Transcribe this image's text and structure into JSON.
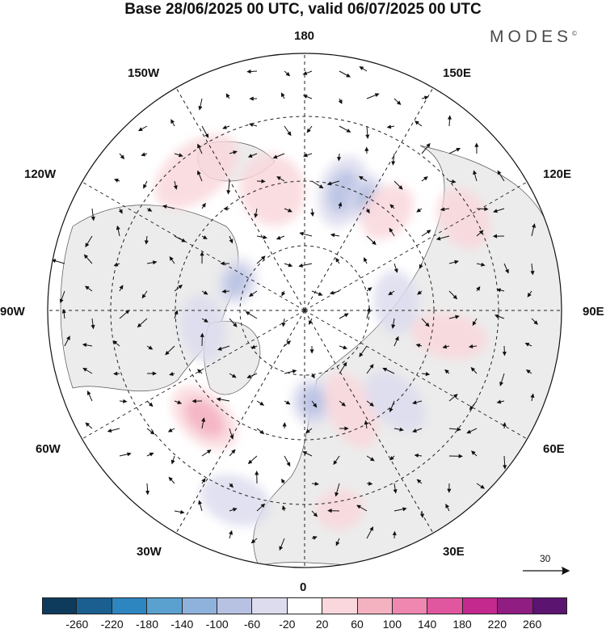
{
  "title": "Base 28/06/2025 00 UTC, valid 06/07/2025 00 UTC",
  "brand": {
    "name": "MODES",
    "mark": "©"
  },
  "longitude_labels": {
    "n": "180",
    "s": "0",
    "e": "90E",
    "w": "90W",
    "nw1": "150W",
    "ne1": "150E",
    "nw2": "120W",
    "ne2": "120E",
    "sw1": "60W",
    "se1": "60E",
    "sw2": "30W",
    "se2": "30E"
  },
  "reference_vector": {
    "label": "30"
  },
  "colorbar": {
    "ticks": [
      "-260",
      "-220",
      "-180",
      "-140",
      "-100",
      "-60",
      "-20",
      "20",
      "60",
      "100",
      "140",
      "180",
      "220",
      "260"
    ],
    "colors": [
      "#0e3b5c",
      "#1a5f8f",
      "#2e86c1",
      "#5aa1d0",
      "#8fb2dc",
      "#b7c2e3",
      "#dcdcee",
      "#ffffff",
      "#f9d7dc",
      "#f4b2c1",
      "#ef87b0",
      "#e0579f",
      "#c42a8d",
      "#8f1d82",
      "#5b1470"
    ]
  },
  "anomalies": [
    {
      "lon": 162,
      "lat": 56,
      "level": 2,
      "sign": -1,
      "rx": 30,
      "ry": 45
    },
    {
      "lon": 152,
      "lat": 55,
      "level": 3,
      "sign": -1,
      "rx": 18,
      "ry": 30
    },
    {
      "lon": 140,
      "lat": 55,
      "level": 1,
      "sign": 1,
      "rx": 28,
      "ry": 38
    },
    {
      "lon": 195,
      "lat": 56,
      "level": 1,
      "sign": 1,
      "rx": 40,
      "ry": 45
    },
    {
      "lon": 218,
      "lat": 42,
      "level": 1,
      "sign": 1,
      "rx": 60,
      "ry": 35
    },
    {
      "lon": 247,
      "lat": 70,
      "level": 2,
      "sign": -1,
      "rx": 30,
      "ry": 24
    },
    {
      "lon": 280,
      "lat": 62,
      "level": 1,
      "sign": -1,
      "rx": 42,
      "ry": 28
    },
    {
      "lon": 317,
      "lat": 50,
      "level": 2,
      "sign": 1,
      "rx": 48,
      "ry": 30
    },
    {
      "lon": 5,
      "lat": 65,
      "level": 2,
      "sign": -1,
      "rx": 26,
      "ry": 30
    },
    {
      "lon": 25,
      "lat": 60,
      "level": 1,
      "sign": 1,
      "rx": 28,
      "ry": 50
    },
    {
      "lon": 45,
      "lat": 55,
      "level": 1,
      "sign": -1,
      "rx": 28,
      "ry": 45
    },
    {
      "lon": 80,
      "lat": 50,
      "level": 1,
      "sign": 1,
      "rx": 28,
      "ry": 48
    },
    {
      "lon": 120,
      "lat": 40,
      "level": 1,
      "sign": 1,
      "rx": 40,
      "ry": 30
    },
    {
      "lon": 95,
      "lat": 65,
      "level": 1,
      "sign": -1,
      "rx": 40,
      "ry": 28
    },
    {
      "lon": 340,
      "lat": 35,
      "level": 1,
      "sign": -1,
      "rx": 45,
      "ry": 30
    },
    {
      "lon": 10,
      "lat": 35,
      "level": 1,
      "sign": 1,
      "rx": 30,
      "ry": 25
    }
  ]
}
